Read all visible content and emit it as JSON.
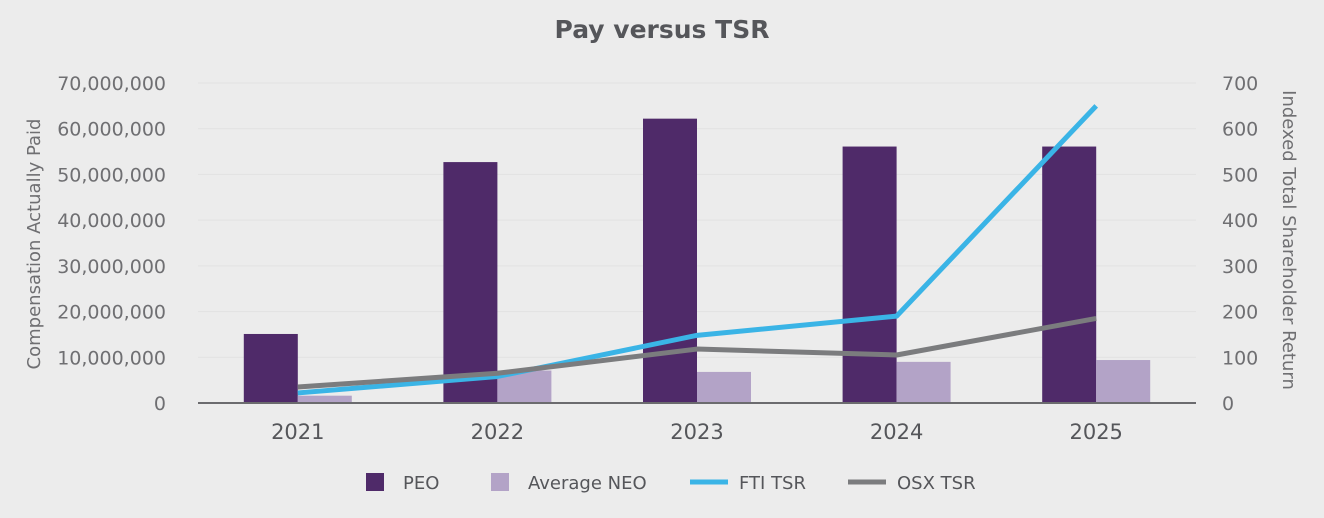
{
  "chart_data": {
    "type": "bar",
    "title": "Pay versus TSR",
    "categories": [
      "2021",
      "2022",
      "2023",
      "2024",
      "2025"
    ],
    "ylabel": "Compensation Actually Paid",
    "y2label": "Indexed Total Shareholder Return",
    "ylim": [
      0,
      70000000
    ],
    "y2lim": [
      0,
      700
    ],
    "yticks": [
      "0",
      "10,000,000",
      "20,000,000",
      "30,000,000",
      "40,000,000",
      "50,000,000",
      "60,000,000",
      "70,000,000"
    ],
    "y2ticks": [
      "0",
      "100",
      "200",
      "300",
      "400",
      "500",
      "600",
      "700"
    ],
    "grid": true,
    "legend_position": "bottom",
    "series": [
      {
        "name": "PEO",
        "kind": "bar",
        "axis": "left",
        "color": "#4f2a69",
        "values": [
          15100000,
          52700000,
          62200000,
          56100000,
          56100000
        ]
      },
      {
        "name": "Average NEO",
        "kind": "bar",
        "axis": "left",
        "color": "#b3a3c7",
        "values": [
          1600000,
          7100000,
          6800000,
          9000000,
          9400000
        ]
      },
      {
        "name": "FTI TSR",
        "kind": "line",
        "axis": "right",
        "color": "#3ab4e6",
        "values": [
          22,
          58,
          148,
          190,
          650
        ]
      },
      {
        "name": "OSX TSR",
        "kind": "line",
        "axis": "right",
        "color": "#7b7c7e",
        "values": [
          35,
          65,
          118,
          105,
          185
        ]
      }
    ]
  }
}
